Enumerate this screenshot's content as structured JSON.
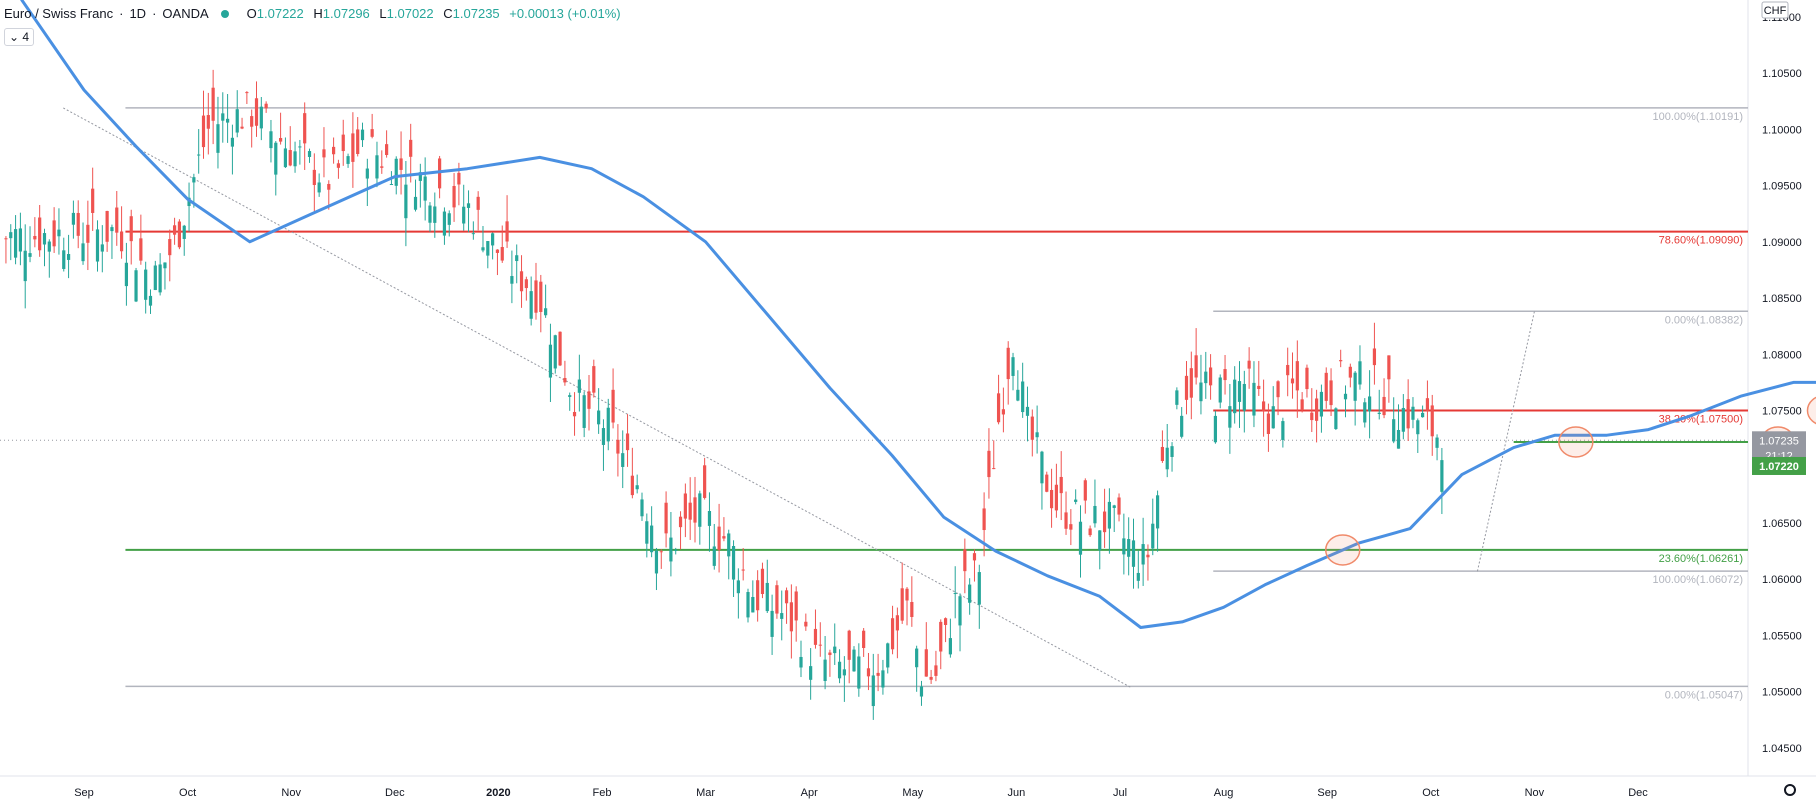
{
  "header": {
    "symbol": "Euro / Swiss Franc",
    "interval": "1D",
    "exchange": "OANDA",
    "open_label": "O",
    "open": "1.07222",
    "high_label": "H",
    "high": "1.07296",
    "low_label": "L",
    "low": "1.07022",
    "close_label": "C",
    "close": "1.07235",
    "change": "+0.00013 (+0.01%)",
    "indicator_count": "4"
  },
  "price_axis": {
    "currency": "CHF",
    "last_price": "1.07235",
    "countdown": "21:12",
    "line_price": "1.07220"
  },
  "colors": {
    "up": "#26a69a",
    "down": "#ef5350",
    "ma": "#4a90e2",
    "fib_red": "#e53935",
    "fib_green": "#43a047",
    "fib_gray": "#b2b5be",
    "marker": "#f08a6a"
  },
  "chart_data": {
    "type": "candlestick",
    "title": "Euro / Swiss Franc · 1D · OANDA",
    "ylim": [
      1.0425,
      1.1115
    ],
    "y_ticks": [
      "1.11000",
      "1.10500",
      "1.10000",
      "1.09500",
      "1.09000",
      "1.08500",
      "1.08000",
      "1.07500",
      "1.07000",
      "1.06500",
      "1.06000",
      "1.05500",
      "1.05000",
      "1.04500"
    ],
    "x_ticks": [
      "Sep",
      "Oct",
      "Nov",
      "Dec",
      "2020",
      "Feb",
      "Mar",
      "Apr",
      "May",
      "Jun",
      "Jul",
      "Aug",
      "Sep",
      "Oct",
      "Nov",
      "Dec"
    ],
    "fib_levels": [
      {
        "label": "100.00%(1.10191)",
        "value": 1.10191,
        "color": "gray"
      },
      {
        "label": "78.60%(1.09090)",
        "value": 1.0909,
        "color": "red"
      },
      {
        "label": "0.00%(1.08382)",
        "value": 1.08382,
        "color": "gray"
      },
      {
        "label": "38.20%(1.07500)",
        "value": 1.075,
        "color": "red"
      },
      {
        "label": "23.60%(1.06261)",
        "value": 1.06261,
        "color": "green"
      },
      {
        "label": "100.00%(1.06072)",
        "value": 1.06072,
        "color": "gray"
      },
      {
        "label": "0.00%(1.05047)",
        "value": 1.05047,
        "color": "gray"
      }
    ],
    "support_line": 1.0722,
    "moving_average": [
      {
        "m": -0.6,
        "v": 1.1115
      },
      {
        "m": 0.0,
        "v": 1.1035
      },
      {
        "m": 0.5,
        "v": 1.0985
      },
      {
        "m": 1.0,
        "v": 1.0938
      },
      {
        "m": 1.6,
        "v": 1.09
      },
      {
        "m": 2.2,
        "v": 1.0925
      },
      {
        "m": 3.0,
        "v": 1.0958
      },
      {
        "m": 3.7,
        "v": 1.0965
      },
      {
        "m": 4.4,
        "v": 1.0975
      },
      {
        "m": 4.9,
        "v": 1.0965
      },
      {
        "m": 5.4,
        "v": 1.094
      },
      {
        "m": 6.0,
        "v": 1.09
      },
      {
        "m": 6.6,
        "v": 1.0835
      },
      {
        "m": 7.2,
        "v": 1.077
      },
      {
        "m": 7.8,
        "v": 1.071
      },
      {
        "m": 8.3,
        "v": 1.0655
      },
      {
        "m": 8.8,
        "v": 1.0625
      },
      {
        "m": 9.3,
        "v": 1.0603
      },
      {
        "m": 9.8,
        "v": 1.0585
      },
      {
        "m": 10.2,
        "v": 1.0557
      },
      {
        "m": 10.6,
        "v": 1.0562
      },
      {
        "m": 11.0,
        "v": 1.0575
      },
      {
        "m": 11.4,
        "v": 1.0595
      },
      {
        "m": 11.8,
        "v": 1.0612
      },
      {
        "m": 12.3,
        "v": 1.0632
      },
      {
        "m": 12.8,
        "v": 1.0645
      },
      {
        "m": 13.3,
        "v": 1.0693
      },
      {
        "m": 13.8,
        "v": 1.0717
      },
      {
        "m": 14.2,
        "v": 1.0728
      },
      {
        "m": 14.7,
        "v": 1.0728
      },
      {
        "m": 15.1,
        "v": 1.0733
      },
      {
        "m": 15.5,
        "v": 1.0745
      },
      {
        "m": 16.0,
        "v": 1.0763
      },
      {
        "m": 16.5,
        "v": 1.0775
      },
      {
        "m": 17.0,
        "v": 1.0775
      },
      {
        "m": 17.4,
        "v": 1.0768
      }
    ],
    "trend_lines": [
      {
        "from": [
          -0.2,
          1.1019
        ],
        "to": [
          10.1,
          1.0504
        ]
      },
      {
        "from": [
          13.45,
          1.0607
        ],
        "to": [
          14.0,
          1.0838
        ]
      }
    ],
    "markers": [
      {
        "m": 12.15,
        "v": 1.0626
      },
      {
        "m": 14.4,
        "v": 1.0722
      },
      {
        "m": 16.35,
        "v": 1.0722
      },
      {
        "m": 16.8,
        "v": 1.075
      }
    ],
    "arrow": {
      "from": [
        17.0,
        1.0715
      ],
      "to": [
        17.4,
        1.0628
      ]
    }
  }
}
